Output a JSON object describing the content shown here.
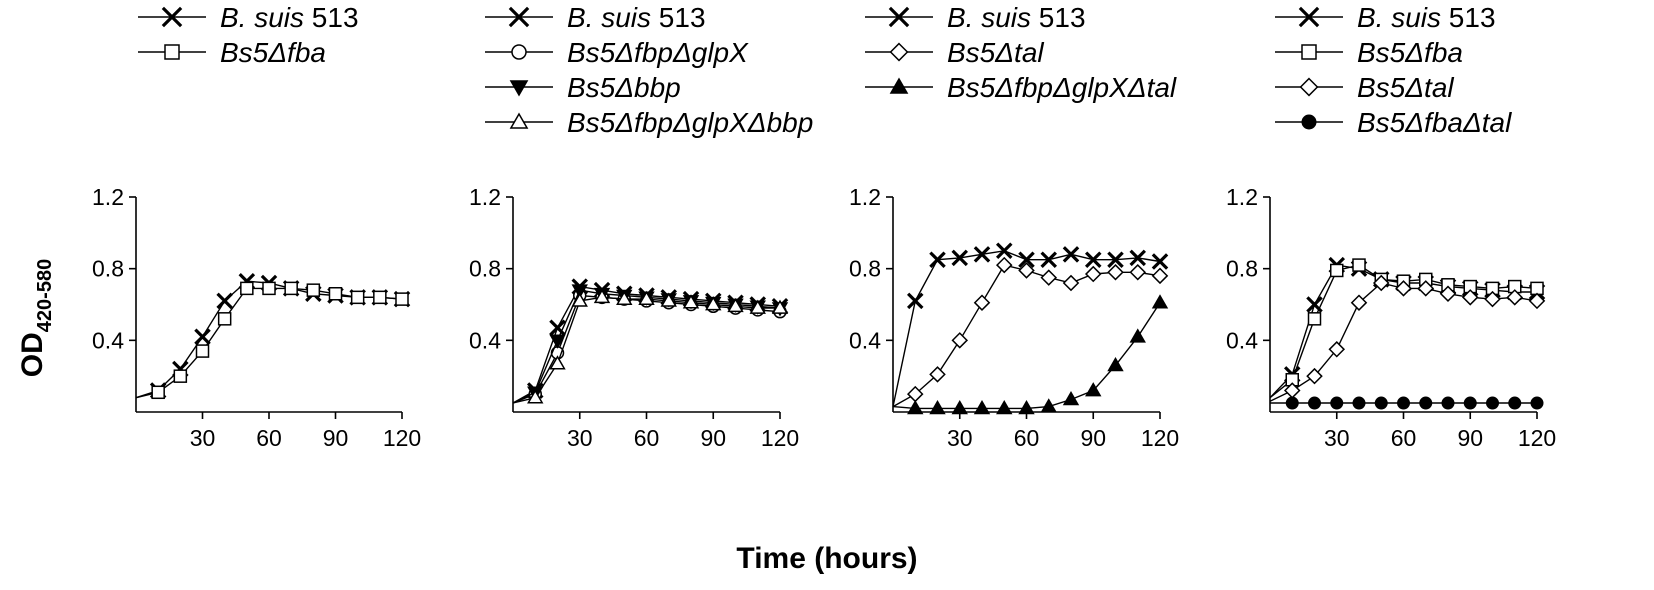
{
  "xlabel": "Time (hours)",
  "ylabel": {
    "main": "OD",
    "sub": "420-580"
  },
  "chart_data": [
    {
      "type": "line",
      "xlim": [
        0,
        120
      ],
      "ylim": [
        0,
        1.2
      ],
      "xticks": [
        "30",
        "60",
        "90",
        "120"
      ],
      "yticks": [
        "0.4",
        "0.8",
        "1.2"
      ],
      "series": [
        {
          "name": "B. suis 513",
          "name_parts": [
            [
              "B. suis",
              true
            ],
            [
              " 513",
              false
            ]
          ],
          "marker": "x",
          "x": [
            0,
            10,
            20,
            30,
            40,
            50,
            60,
            70,
            80,
            90,
            100,
            110,
            120
          ],
          "y": [
            0.08,
            0.12,
            0.24,
            0.42,
            0.62,
            0.73,
            0.72,
            0.69,
            0.66,
            0.65,
            0.64,
            0.64,
            0.63
          ]
        },
        {
          "name": "Bs5Δfba",
          "name_parts": [
            [
              "Bs5Δfba",
              true
            ]
          ],
          "marker": "square",
          "x": [
            0,
            10,
            20,
            30,
            40,
            50,
            60,
            70,
            80,
            90,
            100,
            110,
            120
          ],
          "y": [
            0.08,
            0.11,
            0.2,
            0.34,
            0.52,
            0.69,
            0.69,
            0.69,
            0.68,
            0.66,
            0.64,
            0.64,
            0.63
          ]
        }
      ]
    },
    {
      "type": "line",
      "xlim": [
        0,
        120
      ],
      "ylim": [
        0,
        1.2
      ],
      "xticks": [
        "30",
        "60",
        "90",
        "120"
      ],
      "yticks": [
        "0.4",
        "0.8",
        "1.2"
      ],
      "series": [
        {
          "name": "B. suis 513",
          "name_parts": [
            [
              "B. suis",
              true
            ],
            [
              " 513",
              false
            ]
          ],
          "marker": "x",
          "x": [
            0,
            10,
            20,
            30,
            40,
            50,
            60,
            70,
            80,
            90,
            100,
            110,
            120
          ],
          "y": [
            0.05,
            0.12,
            0.47,
            0.7,
            0.68,
            0.66,
            0.65,
            0.64,
            0.63,
            0.62,
            0.61,
            0.6,
            0.59
          ]
        },
        {
          "name": "Bs5ΔfbpΔglpX",
          "name_parts": [
            [
              "Bs5ΔfbpΔglpX",
              true
            ]
          ],
          "marker": "circle",
          "x": [
            0,
            10,
            20,
            30,
            40,
            50,
            60,
            70,
            80,
            90,
            100,
            110,
            120
          ],
          "y": [
            0.05,
            0.1,
            0.33,
            0.65,
            0.64,
            0.63,
            0.62,
            0.61,
            0.6,
            0.59,
            0.58,
            0.57,
            0.56
          ]
        },
        {
          "name": "Bs5Δbbp",
          "name_parts": [
            [
              "Bs5Δbbp",
              true
            ]
          ],
          "marker": "tri-down",
          "x": [
            0,
            10,
            20,
            30,
            40,
            50,
            60,
            70,
            80,
            90,
            100,
            110,
            120
          ],
          "y": [
            0.05,
            0.11,
            0.4,
            0.68,
            0.66,
            0.65,
            0.64,
            0.63,
            0.62,
            0.61,
            0.6,
            0.59,
            0.58
          ]
        },
        {
          "name": "Bs5ΔfbpΔglpXΔbbp",
          "name_parts": [
            [
              "Bs5ΔfbpΔglpXΔbbp",
              true
            ]
          ],
          "marker": "tri-up-open",
          "x": [
            0,
            10,
            20,
            30,
            40,
            50,
            60,
            70,
            80,
            90,
            100,
            110,
            120
          ],
          "y": [
            0.05,
            0.08,
            0.27,
            0.62,
            0.64,
            0.63,
            0.63,
            0.62,
            0.61,
            0.6,
            0.59,
            0.58,
            0.58
          ]
        }
      ]
    },
    {
      "type": "line",
      "xlim": [
        0,
        120
      ],
      "ylim": [
        0,
        1.2
      ],
      "xticks": [
        "30",
        "60",
        "90",
        "120"
      ],
      "yticks": [
        "0.4",
        "0.8",
        "1.2"
      ],
      "series": [
        {
          "name": "B. suis 513",
          "name_parts": [
            [
              "B. suis",
              true
            ],
            [
              " 513",
              false
            ]
          ],
          "marker": "x",
          "x": [
            0,
            10,
            20,
            30,
            40,
            50,
            60,
            70,
            80,
            90,
            100,
            110,
            120
          ],
          "y": [
            0.03,
            0.62,
            0.85,
            0.86,
            0.88,
            0.9,
            0.85,
            0.85,
            0.88,
            0.85,
            0.85,
            0.86,
            0.84
          ]
        },
        {
          "name": "Bs5Δtal",
          "name_parts": [
            [
              "Bs5Δtal",
              true
            ]
          ],
          "marker": "diamond",
          "x": [
            0,
            10,
            20,
            30,
            40,
            50,
            60,
            70,
            80,
            90,
            100,
            110,
            120
          ],
          "y": [
            0.03,
            0.1,
            0.21,
            0.4,
            0.61,
            0.82,
            0.79,
            0.75,
            0.72,
            0.77,
            0.78,
            0.78,
            0.76
          ]
        },
        {
          "name": "Bs5ΔfbpΔglpXΔtal",
          "name_parts": [
            [
              "Bs5ΔfbpΔglpXΔtal",
              true
            ]
          ],
          "marker": "tri-up",
          "x": [
            0,
            10,
            20,
            30,
            40,
            50,
            60,
            70,
            80,
            90,
            100,
            110,
            120
          ],
          "y": [
            0.03,
            0.02,
            0.02,
            0.02,
            0.02,
            0.02,
            0.02,
            0.03,
            0.07,
            0.12,
            0.26,
            0.42,
            0.61
          ]
        }
      ]
    },
    {
      "type": "line",
      "xlim": [
        0,
        120
      ],
      "ylim": [
        0,
        1.2
      ],
      "xticks": [
        "30",
        "60",
        "90",
        "120"
      ],
      "yticks": [
        "0.4",
        "0.8",
        "1.2"
      ],
      "series": [
        {
          "name": "B. suis 513",
          "name_parts": [
            [
              "B. suis",
              true
            ],
            [
              " 513",
              false
            ]
          ],
          "marker": "x",
          "x": [
            0,
            10,
            20,
            30,
            40,
            50,
            60,
            70,
            80,
            90,
            100,
            110,
            120
          ],
          "y": [
            0.08,
            0.21,
            0.6,
            0.82,
            0.8,
            0.74,
            0.72,
            0.72,
            0.7,
            0.69,
            0.68,
            0.67,
            0.67
          ]
        },
        {
          "name": "Bs5Δfba",
          "name_parts": [
            [
              "Bs5Δfba",
              true
            ]
          ],
          "marker": "square",
          "x": [
            0,
            10,
            20,
            30,
            40,
            50,
            60,
            70,
            80,
            90,
            100,
            110,
            120
          ],
          "y": [
            0.08,
            0.18,
            0.52,
            0.79,
            0.82,
            0.74,
            0.73,
            0.74,
            0.71,
            0.7,
            0.69,
            0.7,
            0.69
          ]
        },
        {
          "name": "Bs5Δtal",
          "name_parts": [
            [
              "Bs5Δtal",
              true
            ]
          ],
          "marker": "diamond",
          "x": [
            0,
            10,
            20,
            30,
            40,
            50,
            60,
            70,
            80,
            90,
            100,
            110,
            120
          ],
          "y": [
            0.06,
            0.12,
            0.2,
            0.35,
            0.61,
            0.72,
            0.69,
            0.69,
            0.66,
            0.64,
            0.63,
            0.64,
            0.62
          ]
        },
        {
          "name": "Bs5ΔfbaΔtal",
          "name_parts": [
            [
              "Bs5ΔfbaΔtal",
              true
            ]
          ],
          "marker": "circle-filled",
          "x": [
            0,
            10,
            20,
            30,
            40,
            50,
            60,
            70,
            80,
            90,
            100,
            110,
            120
          ],
          "y": [
            0.05,
            0.05,
            0.05,
            0.05,
            0.05,
            0.05,
            0.05,
            0.05,
            0.05,
            0.05,
            0.05,
            0.05,
            0.05
          ]
        }
      ]
    }
  ]
}
